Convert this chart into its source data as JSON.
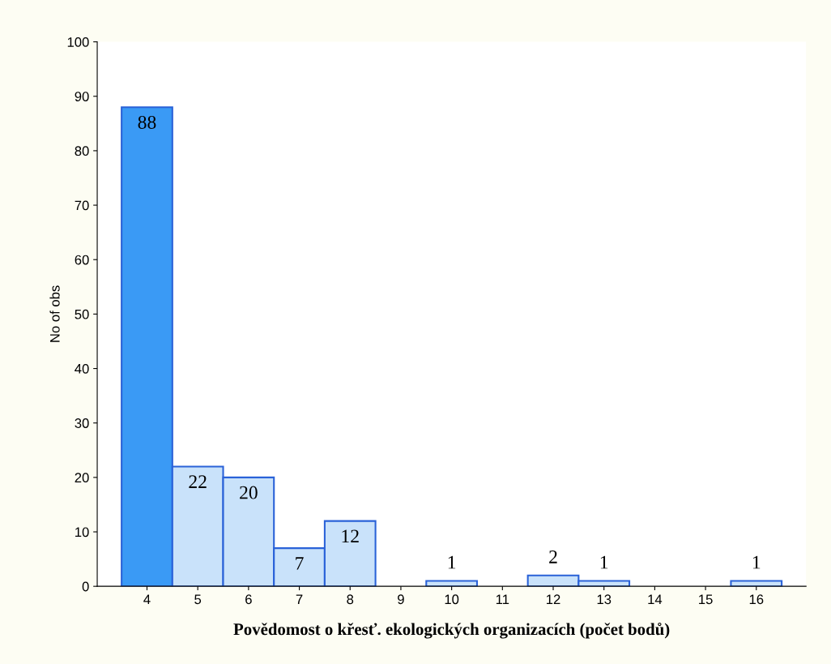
{
  "chart_data": {
    "type": "bar",
    "xlabel": "Povědomost o křesť. ekologických organizacích (počet bodů)",
    "ylabel": "No of obs",
    "categories": [
      "4",
      "5",
      "6",
      "7",
      "8",
      "9",
      "10",
      "11",
      "12",
      "13",
      "14",
      "15",
      "16"
    ],
    "values": [
      88,
      22,
      20,
      7,
      12,
      0,
      1,
      0,
      2,
      1,
      0,
      0,
      1
    ],
    "value_labels": [
      "88",
      "22",
      "20",
      "7",
      "12",
      null,
      "1",
      null,
      "2",
      "1",
      null,
      null,
      "1"
    ],
    "colors": [
      "#3a9af5",
      "#c9e2fa",
      "#c9e2fa",
      "#c9e2fa",
      "#c9e2fa",
      "#c9e2fa",
      "#c9e2fa",
      "#c9e2fa",
      "#c9e2fa",
      "#c9e2fa",
      "#c9e2fa",
      "#c9e2fa",
      "#c9e2fa"
    ],
    "ylim": [
      0,
      100
    ],
    "yticks": [
      0,
      10,
      20,
      30,
      40,
      50,
      60,
      70,
      80,
      90,
      100
    ],
    "grid": false,
    "legend": false
  }
}
